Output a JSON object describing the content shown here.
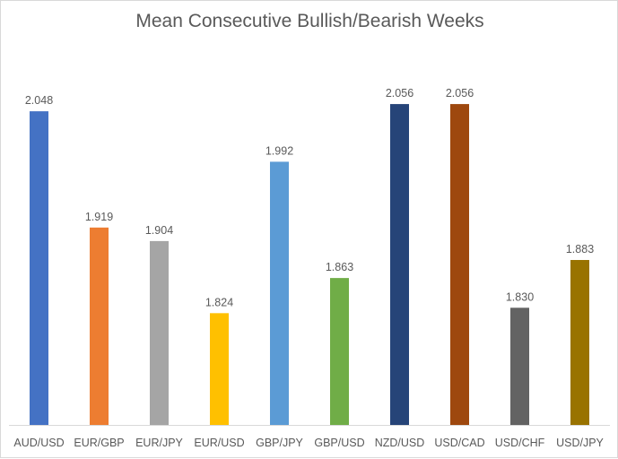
{
  "chart_data": {
    "type": "bar",
    "title": "Mean Consecutive Bullish/Bearish Weeks",
    "xlabel": "",
    "ylabel": "",
    "ylim": [
      1.7,
      2.07
    ],
    "grid": false,
    "legend": "none",
    "categories": [
      "AUD/USD",
      "EUR/GBP",
      "EUR/JPY",
      "EUR/USD",
      "GBP/JPY",
      "GBP/USD",
      "NZD/USD",
      "USD/CAD",
      "USD/CHF",
      "USD/JPY"
    ],
    "values": [
      2.048,
      1.919,
      1.904,
      1.824,
      1.992,
      1.863,
      2.056,
      2.056,
      1.83,
      1.883
    ],
    "value_labels": [
      "2.048",
      "1.919",
      "1.904",
      "1.824",
      "1.992",
      "1.863",
      "2.056",
      "2.056",
      "1.830",
      "1.883"
    ],
    "colors": [
      "#4472c4",
      "#ed7d31",
      "#a5a5a5",
      "#ffc000",
      "#5b9bd5",
      "#70ad47",
      "#264478",
      "#9e480e",
      "#636363",
      "#997300"
    ]
  }
}
